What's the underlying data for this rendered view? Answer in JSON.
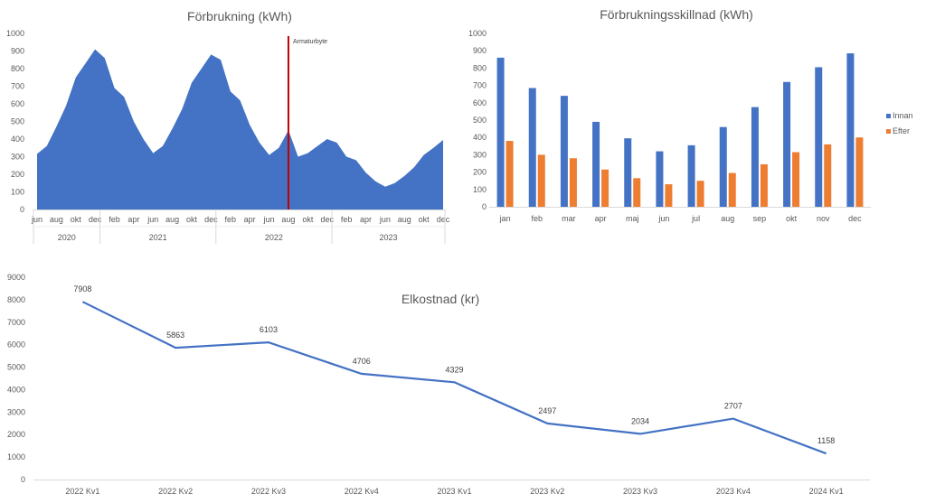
{
  "chart_data": [
    {
      "type": "area",
      "title": "Förbrukning (kWh)",
      "xlabel": "",
      "ylabel": "",
      "ylim": [
        0,
        1000
      ],
      "yticks": [
        "0",
        "100",
        "200",
        "300",
        "400",
        "500",
        "600",
        "700",
        "800",
        "900",
        "1000"
      ],
      "month_labels": [
        "jun",
        "aug",
        "okt",
        "dec",
        "feb",
        "apr",
        "jun",
        "aug",
        "okt",
        "dec",
        "feb",
        "apr",
        "jun",
        "aug",
        "okt",
        "dec",
        "feb",
        "apr",
        "jun",
        "aug",
        "okt",
        "dec"
      ],
      "years": [
        {
          "label": "2020",
          "start_index": 0,
          "end_index": 6
        },
        {
          "label": "2021",
          "start_index": 7,
          "end_index": 18
        },
        {
          "label": "2022",
          "start_index": 19,
          "end_index": 30
        },
        {
          "label": "2023",
          "start_index": 31,
          "end_index": 42
        }
      ],
      "x": [
        "2020-06",
        "2020-07",
        "2020-08",
        "2020-09",
        "2020-10",
        "2020-11",
        "2020-12",
        "2021-01",
        "2021-02",
        "2021-03",
        "2021-04",
        "2021-05",
        "2021-06",
        "2021-07",
        "2021-08",
        "2021-09",
        "2021-10",
        "2021-11",
        "2021-12",
        "2022-01",
        "2022-02",
        "2022-03",
        "2022-04",
        "2022-05",
        "2022-06",
        "2022-07",
        "2022-08",
        "2022-09",
        "2022-10",
        "2022-11",
        "2022-12",
        "2023-01",
        "2023-02",
        "2023-03",
        "2023-04",
        "2023-05",
        "2023-06",
        "2023-07",
        "2023-08",
        "2023-09",
        "2023-10",
        "2023-11",
        "2023-12"
      ],
      "values": [
        316,
        360,
        470,
        590,
        750,
        830,
        910,
        860,
        690,
        640,
        500,
        400,
        320,
        360,
        460,
        570,
        720,
        800,
        880,
        850,
        670,
        620,
        480,
        380,
        310,
        350,
        450,
        300,
        320,
        360,
        400,
        380,
        300,
        280,
        210,
        160,
        130,
        150,
        190,
        240,
        310,
        350,
        395
      ],
      "annotation": {
        "label": "Armaturbyte",
        "x": "2022-08",
        "color": "#C00000"
      },
      "color": "#4472C4"
    },
    {
      "type": "bar",
      "title": "Förbrukningsskillnad (kWh)",
      "xlabel": "",
      "ylabel": "",
      "ylim": [
        0,
        1000
      ],
      "yticks": [
        "0",
        "100",
        "200",
        "300",
        "400",
        "500",
        "600",
        "700",
        "800",
        "900",
        "1000"
      ],
      "categories": [
        "jan",
        "feb",
        "mar",
        "apr",
        "maj",
        "jun",
        "jul",
        "aug",
        "sep",
        "okt",
        "nov",
        "dec"
      ],
      "series": [
        {
          "name": "Innan",
          "color": "#4472C4",
          "values": [
            860,
            685,
            640,
            490,
            395,
            320,
            355,
            460,
            575,
            720,
            805,
            885
          ]
        },
        {
          "name": "Efter",
          "color": "#ED7D31",
          "values": [
            380,
            300,
            280,
            215,
            165,
            130,
            150,
            195,
            245,
            315,
            360,
            400
          ]
        }
      ],
      "legend": "right"
    },
    {
      "type": "line",
      "title": "Elkostnad (kr)",
      "xlabel": "",
      "ylabel": "",
      "ylim": [
        0,
        9000
      ],
      "yticks": [
        "0",
        "1000",
        "2000",
        "3000",
        "4000",
        "5000",
        "6000",
        "7000",
        "8000",
        "9000"
      ],
      "categories": [
        "2022 Kv1",
        "2022 Kv2",
        "2022 Kv3",
        "2022 Kv4",
        "2023 Kv1",
        "2023 Kv2",
        "2023 Kv3",
        "2023 Kv4",
        "2024 Kv1"
      ],
      "values": [
        7908,
        5863,
        6103,
        4706,
        4329,
        2497,
        2034,
        2707,
        1158
      ],
      "data_labels": [
        "7908",
        "5863",
        "6103",
        "4706",
        "4329",
        "2497",
        "2034",
        "2707",
        "1158"
      ],
      "color": "#4472C4"
    }
  ]
}
